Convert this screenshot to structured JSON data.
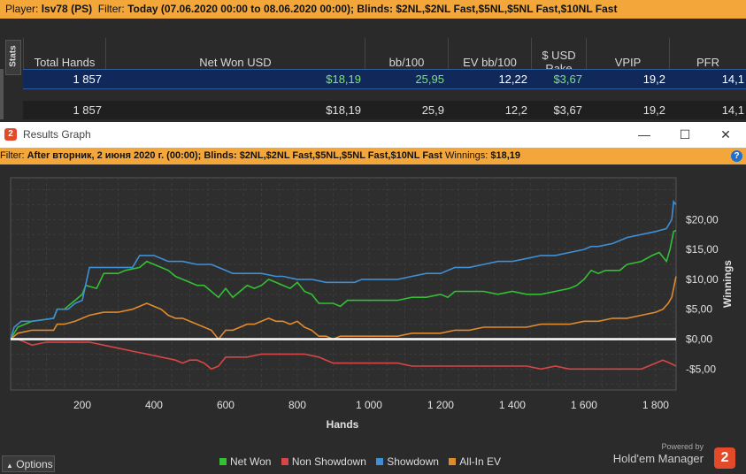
{
  "top_filter": {
    "player_label": "Player:",
    "player": "lsv78 (PS)",
    "filter_label": "Filter:",
    "filter": "Today (07.06.2020 00:00 to 08.06.2020 00:00); Blinds: $2NL,$2NL Fast,$5NL,$5NL Fast,$10NL Fast"
  },
  "stats": {
    "tab_label": "Stats",
    "columns": [
      "Total Hands",
      "Net Won USD",
      "bb/100",
      "EV bb/100",
      "$ USD Rake",
      "VPIP",
      "PFR"
    ],
    "rows": [
      [
        "1 857",
        "$18,19",
        "25,95",
        "12,22",
        "$3,67",
        "19,2",
        "14,1"
      ],
      [
        "1 857",
        "$18,19",
        "25,9",
        "12,2",
        "$3,67",
        "19,2",
        "14,1"
      ]
    ]
  },
  "window": {
    "title": "Results Graph",
    "logo_text": "2",
    "minimize_glyph": "—",
    "maximize_glyph": "☐",
    "close_glyph": "✕",
    "filter_label": "Filter:",
    "filter": "After вторник, 2 июня 2020 г. (00:00); Blinds: $2NL,$2NL Fast,$5NL,$5NL Fast,$10NL Fast",
    "winnings_label": "Winnings:",
    "winnings": "$18,19",
    "help_glyph": "?"
  },
  "footer": {
    "options_label": "Options",
    "options_glyph": "▲",
    "powered_by": "Powered by",
    "brand": "Hold'em Manager",
    "brand_logo": "2"
  },
  "colors": {
    "net_won": "#33c033",
    "non_showdown": "#d94545",
    "showdown": "#3f8fd6",
    "all_in_ev": "#e08a2c",
    "zero_line": "#ffffff"
  },
  "chart_data": {
    "type": "line",
    "xlabel": "Hands",
    "ylabel": "Winnings",
    "xlim": [
      0,
      1857
    ],
    "ylim": [
      -8.5,
      27
    ],
    "x_ticks": [
      {
        "v": 200,
        "label": "200"
      },
      {
        "v": 400,
        "label": "400"
      },
      {
        "v": 600,
        "label": "600"
      },
      {
        "v": 800,
        "label": "800"
      },
      {
        "v": 1000,
        "label": "1 000"
      },
      {
        "v": 1200,
        "label": "1 200"
      },
      {
        "v": 1400,
        "label": "1 400"
      },
      {
        "v": 1600,
        "label": "1 600"
      },
      {
        "v": 1800,
        "label": "1 800"
      }
    ],
    "y_ticks": [
      {
        "v": -5,
        "label": "-$5,00"
      },
      {
        "v": 0,
        "label": "$0,00"
      },
      {
        "v": 5,
        "label": "$5,00"
      },
      {
        "v": 10,
        "label": "$10,00"
      },
      {
        "v": 15,
        "label": "$15,00"
      },
      {
        "v": 20,
        "label": "$20,00"
      }
    ],
    "series": [
      {
        "name": "Net Won",
        "color": "#33c033",
        "points": [
          [
            0,
            0
          ],
          [
            20,
            2
          ],
          [
            60,
            3
          ],
          [
            120,
            3.5
          ],
          [
            130,
            5
          ],
          [
            150,
            5
          ],
          [
            170,
            6
          ],
          [
            190,
            7
          ],
          [
            200,
            7.5
          ],
          [
            210,
            9
          ],
          [
            240,
            8.5
          ],
          [
            260,
            11
          ],
          [
            300,
            11
          ],
          [
            320,
            11.5
          ],
          [
            360,
            12
          ],
          [
            380,
            13
          ],
          [
            400,
            12.5
          ],
          [
            420,
            12
          ],
          [
            440,
            11.5
          ],
          [
            460,
            10.5
          ],
          [
            480,
            10
          ],
          [
            500,
            9.5
          ],
          [
            520,
            9
          ],
          [
            540,
            9
          ],
          [
            560,
            8
          ],
          [
            580,
            7
          ],
          [
            600,
            8.5
          ],
          [
            620,
            7
          ],
          [
            640,
            8
          ],
          [
            660,
            9
          ],
          [
            680,
            8.5
          ],
          [
            700,
            9
          ],
          [
            720,
            10
          ],
          [
            740,
            9.5
          ],
          [
            760,
            9
          ],
          [
            780,
            8.5
          ],
          [
            800,
            9.5
          ],
          [
            820,
            8
          ],
          [
            840,
            7.5
          ],
          [
            860,
            6
          ],
          [
            880,
            6
          ],
          [
            900,
            6
          ],
          [
            920,
            5.5
          ],
          [
            940,
            6.5
          ],
          [
            960,
            6.5
          ],
          [
            980,
            6.5
          ],
          [
            1000,
            6.5
          ],
          [
            1040,
            6.5
          ],
          [
            1080,
            6.5
          ],
          [
            1120,
            7
          ],
          [
            1160,
            7
          ],
          [
            1200,
            7.5
          ],
          [
            1220,
            7
          ],
          [
            1240,
            8
          ],
          [
            1280,
            8
          ],
          [
            1320,
            8
          ],
          [
            1360,
            7.5
          ],
          [
            1400,
            8
          ],
          [
            1440,
            7.5
          ],
          [
            1480,
            7.5
          ],
          [
            1520,
            8
          ],
          [
            1560,
            8.5
          ],
          [
            1580,
            9
          ],
          [
            1600,
            10
          ],
          [
            1620,
            11.5
          ],
          [
            1640,
            11
          ],
          [
            1660,
            11.5
          ],
          [
            1700,
            11.5
          ],
          [
            1720,
            12.5
          ],
          [
            1760,
            13
          ],
          [
            1790,
            14
          ],
          [
            1810,
            14.5
          ],
          [
            1830,
            13
          ],
          [
            1840,
            15
          ],
          [
            1850,
            18
          ],
          [
            1857,
            18.19
          ]
        ]
      },
      {
        "name": "Non Showdown",
        "color": "#d94545",
        "points": [
          [
            0,
            0
          ],
          [
            20,
            0
          ],
          [
            40,
            -0.5
          ],
          [
            60,
            -1
          ],
          [
            100,
            -0.5
          ],
          [
            140,
            -0.5
          ],
          [
            180,
            -0.5
          ],
          [
            200,
            -0.5
          ],
          [
            220,
            -0.5
          ],
          [
            260,
            -1
          ],
          [
            300,
            -1.5
          ],
          [
            340,
            -2
          ],
          [
            380,
            -2.5
          ],
          [
            420,
            -3
          ],
          [
            460,
            -3.5
          ],
          [
            480,
            -4
          ],
          [
            500,
            -3.5
          ],
          [
            520,
            -3.5
          ],
          [
            540,
            -4
          ],
          [
            560,
            -5
          ],
          [
            580,
            -4.5
          ],
          [
            600,
            -3
          ],
          [
            620,
            -3
          ],
          [
            660,
            -3
          ],
          [
            700,
            -2.5
          ],
          [
            740,
            -2.5
          ],
          [
            780,
            -2.5
          ],
          [
            820,
            -2.5
          ],
          [
            860,
            -3
          ],
          [
            880,
            -3.5
          ],
          [
            900,
            -4
          ],
          [
            920,
            -4
          ],
          [
            960,
            -4
          ],
          [
            1000,
            -4
          ],
          [
            1040,
            -4
          ],
          [
            1080,
            -4
          ],
          [
            1120,
            -4.5
          ],
          [
            1160,
            -4.5
          ],
          [
            1200,
            -4.5
          ],
          [
            1240,
            -4.5
          ],
          [
            1280,
            -4.5
          ],
          [
            1320,
            -4.5
          ],
          [
            1360,
            -4.5
          ],
          [
            1400,
            -4.5
          ],
          [
            1440,
            -4.5
          ],
          [
            1480,
            -5
          ],
          [
            1520,
            -4.5
          ],
          [
            1560,
            -5
          ],
          [
            1600,
            -5
          ],
          [
            1640,
            -5
          ],
          [
            1680,
            -5
          ],
          [
            1720,
            -5
          ],
          [
            1760,
            -5
          ],
          [
            1780,
            -4.5
          ],
          [
            1800,
            -4
          ],
          [
            1820,
            -3.5
          ],
          [
            1840,
            -4
          ],
          [
            1857,
            -4.5
          ]
        ]
      },
      {
        "name": "Showdown",
        "color": "#3f8fd6",
        "points": [
          [
            0,
            0
          ],
          [
            10,
            2
          ],
          [
            30,
            3
          ],
          [
            60,
            3
          ],
          [
            120,
            3.5
          ],
          [
            130,
            5
          ],
          [
            160,
            5
          ],
          [
            180,
            6
          ],
          [
            200,
            6.5
          ],
          [
            220,
            12
          ],
          [
            260,
            12
          ],
          [
            280,
            12
          ],
          [
            300,
            12
          ],
          [
            340,
            12
          ],
          [
            360,
            14
          ],
          [
            400,
            14
          ],
          [
            420,
            13.5
          ],
          [
            440,
            13
          ],
          [
            480,
            13
          ],
          [
            520,
            12.5
          ],
          [
            560,
            12.5
          ],
          [
            620,
            11
          ],
          [
            660,
            11
          ],
          [
            700,
            11
          ],
          [
            740,
            10.5
          ],
          [
            760,
            10.5
          ],
          [
            800,
            10
          ],
          [
            840,
            10
          ],
          [
            880,
            9.5
          ],
          [
            920,
            9.5
          ],
          [
            960,
            9.5
          ],
          [
            980,
            10
          ],
          [
            1000,
            10
          ],
          [
            1040,
            10
          ],
          [
            1080,
            10
          ],
          [
            1120,
            10.5
          ],
          [
            1160,
            11
          ],
          [
            1200,
            11
          ],
          [
            1240,
            12
          ],
          [
            1280,
            12
          ],
          [
            1320,
            12.5
          ],
          [
            1360,
            13
          ],
          [
            1400,
            13
          ],
          [
            1440,
            13.5
          ],
          [
            1480,
            14
          ],
          [
            1520,
            14
          ],
          [
            1560,
            14.5
          ],
          [
            1600,
            15
          ],
          [
            1620,
            15.5
          ],
          [
            1640,
            15.5
          ],
          [
            1680,
            16
          ],
          [
            1720,
            17
          ],
          [
            1760,
            17.5
          ],
          [
            1800,
            18
          ],
          [
            1830,
            18.5
          ],
          [
            1845,
            20
          ],
          [
            1850,
            23
          ],
          [
            1857,
            22.5
          ]
        ]
      },
      {
        "name": "All-In EV",
        "color": "#e08a2c",
        "points": [
          [
            0,
            0
          ],
          [
            20,
            1
          ],
          [
            60,
            1.5
          ],
          [
            120,
            1.5
          ],
          [
            130,
            2.5
          ],
          [
            150,
            2.5
          ],
          [
            180,
            3
          ],
          [
            200,
            3.5
          ],
          [
            220,
            4
          ],
          [
            260,
            4.5
          ],
          [
            300,
            4.5
          ],
          [
            340,
            5
          ],
          [
            360,
            5.5
          ],
          [
            380,
            6
          ],
          [
            400,
            5.5
          ],
          [
            420,
            5
          ],
          [
            440,
            4
          ],
          [
            460,
            3.5
          ],
          [
            480,
            3.5
          ],
          [
            500,
            3
          ],
          [
            520,
            2.5
          ],
          [
            540,
            2
          ],
          [
            560,
            1.5
          ],
          [
            580,
            0
          ],
          [
            600,
            1.5
          ],
          [
            620,
            1.5
          ],
          [
            640,
            2
          ],
          [
            660,
            2.5
          ],
          [
            680,
            2.5
          ],
          [
            700,
            3
          ],
          [
            720,
            3.5
          ],
          [
            740,
            3
          ],
          [
            760,
            3
          ],
          [
            780,
            2.5
          ],
          [
            800,
            3
          ],
          [
            820,
            2
          ],
          [
            840,
            1.5
          ],
          [
            860,
            0.5
          ],
          [
            880,
            0.5
          ],
          [
            900,
            0
          ],
          [
            920,
            0.5
          ],
          [
            960,
            0.5
          ],
          [
            1000,
            0.5
          ],
          [
            1040,
            0.5
          ],
          [
            1080,
            0.5
          ],
          [
            1120,
            1
          ],
          [
            1160,
            1
          ],
          [
            1200,
            1
          ],
          [
            1240,
            1.5
          ],
          [
            1280,
            1.5
          ],
          [
            1320,
            2
          ],
          [
            1360,
            2
          ],
          [
            1400,
            2
          ],
          [
            1440,
            2
          ],
          [
            1480,
            2.5
          ],
          [
            1520,
            2.5
          ],
          [
            1560,
            2.5
          ],
          [
            1600,
            3
          ],
          [
            1640,
            3
          ],
          [
            1680,
            3.5
          ],
          [
            1720,
            3.5
          ],
          [
            1760,
            4
          ],
          [
            1800,
            4.5
          ],
          [
            1820,
            5
          ],
          [
            1835,
            6
          ],
          [
            1845,
            7
          ],
          [
            1857,
            10.5
          ]
        ]
      }
    ]
  }
}
